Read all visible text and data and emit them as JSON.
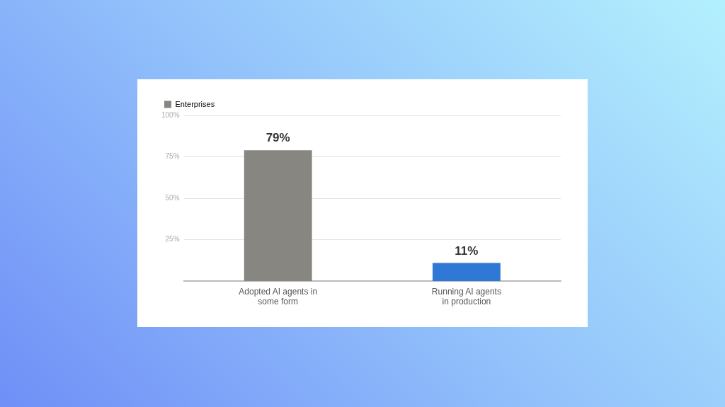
{
  "chart_data": {
    "type": "bar",
    "categories": [
      "Adopted AI agents in some form",
      "Running AI agents in production"
    ],
    "series": [
      {
        "name": "Enterprises",
        "color": "#878680",
        "colors": [
          "#878680",
          "#2f78d6"
        ],
        "values": [
          79,
          11
        ],
        "value_labels": [
          "79%",
          "11%"
        ]
      }
    ],
    "ylim": [
      0,
      100
    ],
    "yticks": [
      {
        "value": 25,
        "label": "25%"
      },
      {
        "value": 50,
        "label": "50%"
      },
      {
        "value": 75,
        "label": "75%"
      },
      {
        "value": 100,
        "label": "100%"
      }
    ],
    "grid": "y",
    "legend": "top left"
  }
}
